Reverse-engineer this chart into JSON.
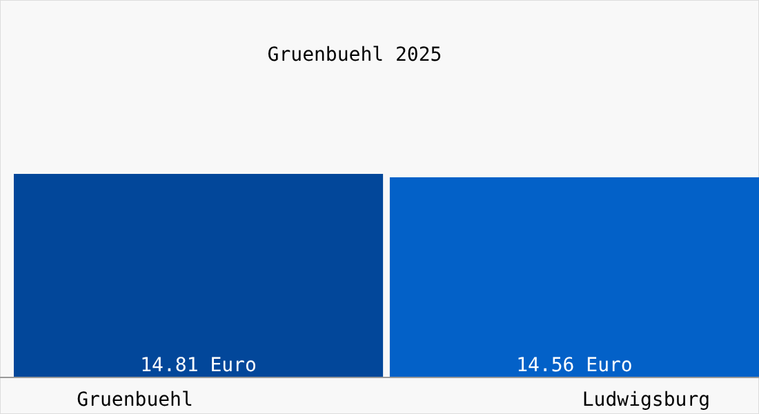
{
  "chart_data": {
    "type": "bar",
    "title": "Gruenbuehl 2025",
    "categories": [
      "Gruenbuehl",
      "Ludwigsburg"
    ],
    "values": [
      14.81,
      14.56
    ],
    "colors": [
      "#02479a",
      "#0361c8"
    ],
    "value_labels": [
      "14.81 Euro",
      "14.56 Euro"
    ]
  }
}
